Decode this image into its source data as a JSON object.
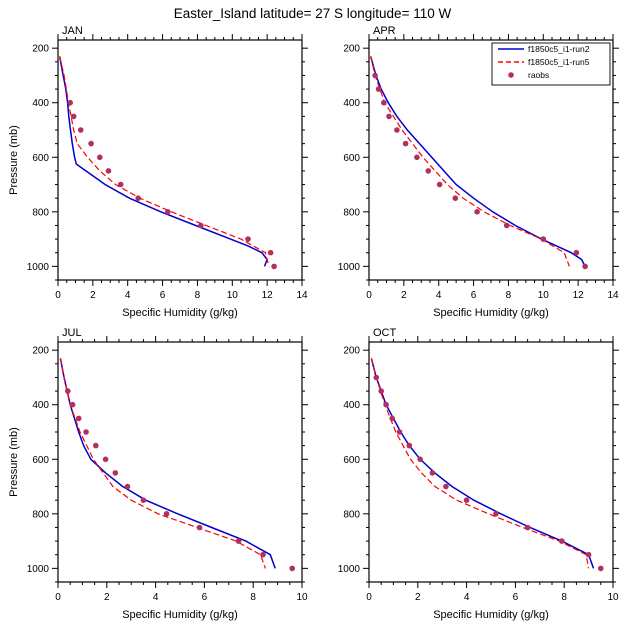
{
  "title": "Easter_Island  latitude= 27 S longitude= 110 W",
  "colors": {
    "run2": "#0000cd",
    "run5": "#ff0000",
    "raobs": "#b03060",
    "axis": "#000000"
  },
  "legend": {
    "panel": "APR",
    "entries": [
      {
        "label": "f1850c5_i1-run2",
        "style": "solid",
        "color": "#0000cd"
      },
      {
        "label": "f1850c5_i1-run5",
        "style": "dashed",
        "color": "#ff0000"
      },
      {
        "label": "raobs",
        "style": "marker",
        "color": "#b03060"
      }
    ]
  },
  "chart_data": [
    {
      "type": "line",
      "title": "JAN",
      "xlabel": "Specific Humidity (g/kg)",
      "ylabel": "Pressure (mb)",
      "xlim": [
        0,
        14
      ],
      "xticks": [
        0,
        2,
        4,
        6,
        8,
        10,
        12,
        14
      ],
      "x_minor_step": 0.5,
      "ylim": [
        170,
        1050
      ],
      "yticks": [
        200,
        400,
        600,
        800,
        1000
      ],
      "y_minor_step": 50,
      "y_axis": "pressure-increasing-downward",
      "series": [
        {
          "name": "f1850c5_i1-run2",
          "type": "line",
          "style": "solid",
          "color": "#0000cd",
          "pressure": [
            230,
            250,
            300,
            350,
            400,
            450,
            500,
            550,
            600,
            625,
            650,
            700,
            750,
            800,
            850,
            900,
            925,
            950,
            975,
            1000
          ],
          "q": [
            0.1,
            0.15,
            0.3,
            0.45,
            0.55,
            0.62,
            0.72,
            0.82,
            0.95,
            1.05,
            1.6,
            2.7,
            4.1,
            5.9,
            7.9,
            9.9,
            10.9,
            11.7,
            12.0,
            11.85
          ]
        },
        {
          "name": "f1850c5_i1-run5",
          "type": "line",
          "style": "dashed",
          "color": "#ff0000",
          "pressure": [
            230,
            300,
            400,
            500,
            550,
            600,
            650,
            700,
            750,
            800,
            850,
            900,
            950,
            1000
          ],
          "q": [
            0.1,
            0.35,
            0.6,
            0.9,
            1.1,
            1.7,
            2.4,
            3.3,
            4.7,
            6.5,
            8.5,
            10.5,
            11.9,
            12.1
          ]
        },
        {
          "name": "raobs",
          "type": "scatter",
          "color": "#b03060",
          "pressure": [
            400,
            450,
            500,
            550,
            600,
            650,
            700,
            750,
            800,
            850,
            900,
            950,
            1000
          ],
          "q": [
            0.7,
            0.9,
            1.3,
            1.9,
            2.4,
            2.9,
            3.6,
            4.6,
            6.3,
            8.2,
            10.9,
            12.2,
            12.4
          ]
        }
      ]
    },
    {
      "type": "line",
      "title": "APR",
      "xlabel": "Specific Humidity (g/kg)",
      "ylabel": "",
      "xlim": [
        0,
        14
      ],
      "xticks": [
        0,
        2,
        4,
        6,
        8,
        10,
        12,
        14
      ],
      "x_minor_step": 0.5,
      "ylim": [
        170,
        1050
      ],
      "yticks": [
        200,
        400,
        600,
        800,
        1000
      ],
      "y_minor_step": 50,
      "y_axis": "pressure-increasing-downward",
      "series": [
        {
          "name": "f1850c5_i1-run2",
          "type": "line",
          "style": "solid",
          "color": "#0000cd",
          "pressure": [
            230,
            300,
            350,
            400,
            450,
            500,
            550,
            600,
            650,
            700,
            750,
            800,
            850,
            900,
            950,
            975,
            1000
          ],
          "q": [
            0.1,
            0.4,
            0.7,
            1.1,
            1.6,
            2.2,
            2.9,
            3.6,
            4.3,
            5.0,
            6.0,
            7.1,
            8.4,
            9.9,
            11.6,
            12.2,
            12.4
          ]
        },
        {
          "name": "f1850c5_i1-run5",
          "type": "line",
          "style": "dashed",
          "color": "#ff0000",
          "pressure": [
            230,
            300,
            400,
            500,
            600,
            650,
            700,
            750,
            800,
            850,
            900,
            950,
            1000
          ],
          "q": [
            0.1,
            0.35,
            0.9,
            1.9,
            3.1,
            3.8,
            4.5,
            5.4,
            6.6,
            8.1,
            9.9,
            11.2,
            11.5
          ]
        },
        {
          "name": "raobs",
          "type": "scatter",
          "color": "#b03060",
          "pressure": [
            300,
            350,
            400,
            450,
            500,
            550,
            600,
            650,
            700,
            750,
            800,
            850,
            900,
            950,
            1000
          ],
          "q": [
            0.35,
            0.55,
            0.85,
            1.15,
            1.6,
            2.1,
            2.75,
            3.4,
            4.05,
            4.95,
            6.2,
            7.9,
            10.0,
            11.9,
            12.4
          ]
        }
      ]
    },
    {
      "type": "line",
      "title": "JUL",
      "xlabel": "Specific Humidity (g/kg)",
      "ylabel": "Pressure (mb)",
      "xlim": [
        0,
        10
      ],
      "xticks": [
        0,
        2,
        4,
        6,
        8,
        10
      ],
      "x_minor_step": 0.5,
      "ylim": [
        170,
        1050
      ],
      "yticks": [
        200,
        400,
        600,
        800,
        1000
      ],
      "y_minor_step": 50,
      "y_axis": "pressure-increasing-downward",
      "series": [
        {
          "name": "f1850c5_i1-run2",
          "type": "line",
          "style": "solid",
          "color": "#0000cd",
          "pressure": [
            230,
            300,
            400,
            500,
            550,
            600,
            650,
            700,
            750,
            800,
            850,
            900,
            950,
            1000
          ],
          "q": [
            0.1,
            0.25,
            0.5,
            0.85,
            1.05,
            1.35,
            1.95,
            2.65,
            3.6,
            4.9,
            6.3,
            7.7,
            8.7,
            8.9
          ]
        },
        {
          "name": "f1850c5_i1-run5",
          "type": "line",
          "style": "dashed",
          "color": "#ff0000",
          "pressure": [
            230,
            300,
            400,
            500,
            600,
            650,
            700,
            750,
            800,
            850,
            900,
            950,
            1000
          ],
          "q": [
            0.1,
            0.25,
            0.5,
            0.9,
            1.45,
            1.85,
            2.25,
            3.0,
            4.1,
            5.7,
            7.3,
            8.3,
            8.5
          ]
        },
        {
          "name": "raobs",
          "type": "scatter",
          "color": "#b03060",
          "pressure": [
            350,
            400,
            450,
            500,
            550,
            600,
            650,
            700,
            750,
            800,
            850,
            900,
            950,
            1000
          ],
          "q": [
            0.4,
            0.6,
            0.85,
            1.15,
            1.55,
            1.95,
            2.35,
            2.85,
            3.5,
            4.45,
            5.8,
            7.4,
            8.4,
            9.6
          ]
        }
      ]
    },
    {
      "type": "line",
      "title": "OCT",
      "xlabel": "Specific Humidity (g/kg)",
      "ylabel": "",
      "xlim": [
        0,
        10
      ],
      "xticks": [
        0,
        2,
        4,
        6,
        8,
        10
      ],
      "x_minor_step": 0.5,
      "ylim": [
        170,
        1050
      ],
      "yticks": [
        200,
        400,
        600,
        800,
        1000
      ],
      "y_minor_step": 50,
      "y_axis": "pressure-increasing-downward",
      "series": [
        {
          "name": "f1850c5_i1-run2",
          "type": "line",
          "style": "solid",
          "color": "#0000cd",
          "pressure": [
            230,
            300,
            400,
            500,
            550,
            600,
            650,
            700,
            750,
            800,
            850,
            900,
            950,
            1000
          ],
          "q": [
            0.1,
            0.3,
            0.7,
            1.3,
            1.65,
            2.1,
            2.7,
            3.4,
            4.3,
            5.4,
            6.6,
            7.9,
            9.0,
            9.2
          ]
        },
        {
          "name": "f1850c5_i1-run5",
          "type": "line",
          "style": "dashed",
          "color": "#ff0000",
          "pressure": [
            230,
            300,
            400,
            500,
            600,
            650,
            700,
            750,
            800,
            850,
            900,
            950,
            1000
          ],
          "q": [
            0.1,
            0.3,
            0.65,
            1.1,
            1.7,
            2.15,
            2.7,
            3.6,
            4.9,
            6.3,
            7.8,
            8.9,
            9.0
          ]
        },
        {
          "name": "raobs",
          "type": "scatter",
          "color": "#b03060",
          "pressure": [
            300,
            350,
            400,
            450,
            500,
            550,
            600,
            650,
            700,
            750,
            800,
            850,
            900,
            950,
            1000
          ],
          "q": [
            0.3,
            0.5,
            0.7,
            0.95,
            1.25,
            1.65,
            2.1,
            2.6,
            3.15,
            4.0,
            5.2,
            6.5,
            7.9,
            9.0,
            9.5
          ]
        }
      ]
    }
  ]
}
